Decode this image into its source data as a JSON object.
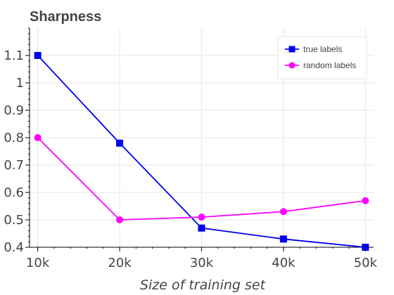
{
  "chart_data": {
    "type": "line",
    "title": "Sharpness",
    "xlabel": "Size of training set",
    "ylabel": "",
    "x": [
      10000,
      20000,
      30000,
      40000,
      50000
    ],
    "x_tick_labels": [
      "10k",
      "20k",
      "30k",
      "40k",
      "50k"
    ],
    "xlim": [
      9000,
      51000
    ],
    "ylim": [
      0.4,
      1.2
    ],
    "y_ticks": [
      0.4,
      0.5,
      0.6,
      0.7,
      0.8,
      0.9,
      1.0,
      1.1
    ],
    "y_tick_labels": [
      "0.4",
      "0.5",
      "0.6",
      "0.7",
      "0.8",
      "0.9",
      "1",
      "1.1"
    ],
    "grid": true,
    "legend_position": "top-right",
    "series": [
      {
        "name": "true labels",
        "color": "#0000ee",
        "marker": "square",
        "values": [
          1.1,
          0.78,
          0.47,
          0.43,
          0.4
        ]
      },
      {
        "name": "random labels",
        "color": "#ff00ff",
        "marker": "circle",
        "values": [
          0.8,
          0.5,
          0.51,
          0.53,
          0.57
        ]
      }
    ]
  }
}
